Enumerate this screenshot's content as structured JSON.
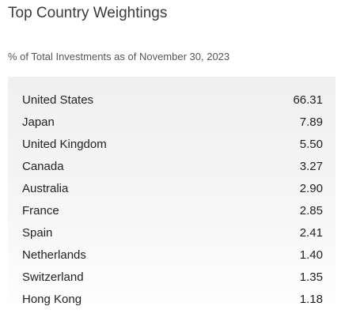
{
  "header": {
    "title": "Top Country Weightings",
    "subtitle": "% of Total Investments as of November 30, 2023"
  },
  "chart_data": {
    "type": "table",
    "title": "Top Country Weightings",
    "subtitle": "% of Total Investments as of November 30, 2023",
    "rows": [
      {
        "country": "United States",
        "value": "66.31"
      },
      {
        "country": "Japan",
        "value": "7.89"
      },
      {
        "country": "United Kingdom",
        "value": "5.50"
      },
      {
        "country": "Canada",
        "value": "3.27"
      },
      {
        "country": "Australia",
        "value": "2.90"
      },
      {
        "country": "France",
        "value": "2.85"
      },
      {
        "country": "Spain",
        "value": "2.41"
      },
      {
        "country": "Netherlands",
        "value": "1.40"
      },
      {
        "country": "Switzerland",
        "value": "1.35"
      },
      {
        "country": "Hong Kong",
        "value": "1.18"
      }
    ]
  }
}
